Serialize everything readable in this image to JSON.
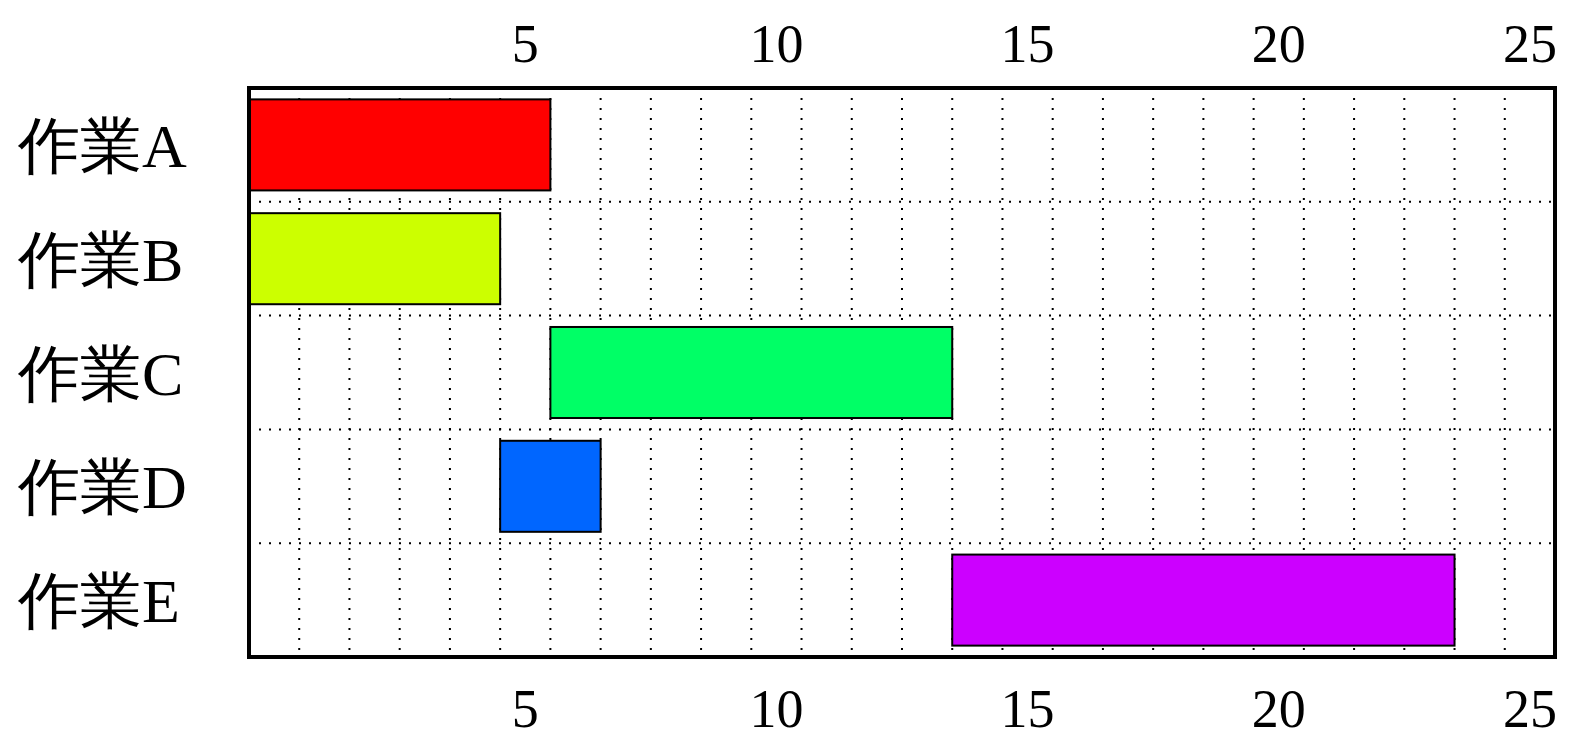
{
  "chart_data": {
    "type": "bar",
    "orientation": "horizontal",
    "categories": [
      "作業A",
      "作業B",
      "作業C",
      "作業D",
      "作業E"
    ],
    "base": [
      0,
      0,
      6,
      5,
      14
    ],
    "values": [
      6,
      5,
      8,
      2,
      10
    ],
    "colors": [
      "#ff0000",
      "#ccff00",
      "#00ff66",
      "#0066ff",
      "#cc00ff"
    ],
    "xlim": [
      0,
      26
    ],
    "xticks": [
      {
        "value": 5.5,
        "label": "5"
      },
      {
        "value": 10.5,
        "label": "10"
      },
      {
        "value": 15.5,
        "label": "15"
      },
      {
        "value": 20.5,
        "label": "20"
      },
      {
        "value": 25.5,
        "label": "25"
      }
    ],
    "x2lim": [
      0,
      26
    ],
    "x2ticks": [
      {
        "value": 5.5,
        "label": "5"
      },
      {
        "value": 10.5,
        "label": "10"
      },
      {
        "value": 15.5,
        "label": "15"
      },
      {
        "value": 20.5,
        "label": "20"
      },
      {
        "value": 25.5,
        "label": "25"
      }
    ],
    "grid": true
  }
}
